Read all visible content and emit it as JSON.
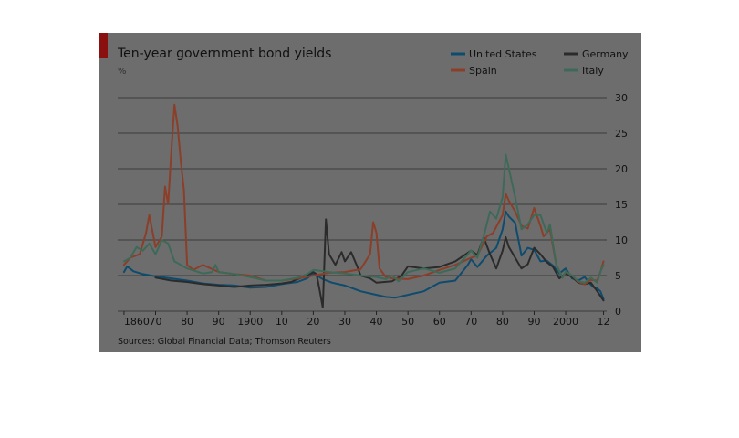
{
  "chart_data": {
    "type": "line",
    "title": "Ten-year government bond yields",
    "subtitle": "%",
    "source": "Sources: Global Financial Data; Thomson Reuters",
    "xlim": [
      1858,
      2013
    ],
    "ylim": [
      0,
      30
    ],
    "y_ticks": [
      0,
      5,
      10,
      15,
      20,
      25,
      30
    ],
    "x_ticks": [
      {
        "year": 1860,
        "label": "1860"
      },
      {
        "year": 1870,
        "label": "70"
      },
      {
        "year": 1880,
        "label": "80"
      },
      {
        "year": 1890,
        "label": "90"
      },
      {
        "year": 1900,
        "label": "1900"
      },
      {
        "year": 1910,
        "label": "10"
      },
      {
        "year": 1920,
        "label": "20"
      },
      {
        "year": 1930,
        "label": "30"
      },
      {
        "year": 1940,
        "label": "40"
      },
      {
        "year": 1950,
        "label": "50"
      },
      {
        "year": 1960,
        "label": "60"
      },
      {
        "year": 1970,
        "label": "70"
      },
      {
        "year": 1980,
        "label": "80"
      },
      {
        "year": 1990,
        "label": "90"
      },
      {
        "year": 2000,
        "label": "2000"
      },
      {
        "year": 2012,
        "label": "12"
      }
    ],
    "grid": "horizontal",
    "legend_position": "top-right",
    "series": [
      {
        "name": "United States",
        "color": "#0d4c6e",
        "points": [
          [
            1860,
            5.5
          ],
          [
            1861,
            6.3
          ],
          [
            1863,
            5.6
          ],
          [
            1866,
            5.2
          ],
          [
            1870,
            4.9
          ],
          [
            1875,
            4.6
          ],
          [
            1880,
            4.3
          ],
          [
            1885,
            3.9
          ],
          [
            1890,
            3.7
          ],
          [
            1895,
            3.6
          ],
          [
            1900,
            3.3
          ],
          [
            1905,
            3.4
          ],
          [
            1910,
            3.8
          ],
          [
            1915,
            4.1
          ],
          [
            1918,
            4.6
          ],
          [
            1920,
            5.3
          ],
          [
            1923,
            4.5
          ],
          [
            1926,
            4.0
          ],
          [
            1930,
            3.6
          ],
          [
            1935,
            2.8
          ],
          [
            1940,
            2.3
          ],
          [
            1943,
            2.0
          ],
          [
            1946,
            1.9
          ],
          [
            1950,
            2.3
          ],
          [
            1955,
            2.8
          ],
          [
            1960,
            4.0
          ],
          [
            1965,
            4.3
          ],
          [
            1969,
            6.5
          ],
          [
            1970,
            7.3
          ],
          [
            1972,
            6.2
          ],
          [
            1975,
            7.8
          ],
          [
            1978,
            8.9
          ],
          [
            1980,
            11.5
          ],
          [
            1981,
            14.0
          ],
          [
            1982,
            13.3
          ],
          [
            1984,
            12.4
          ],
          [
            1986,
            7.8
          ],
          [
            1988,
            8.9
          ],
          [
            1990,
            8.6
          ],
          [
            1992,
            7.0
          ],
          [
            1994,
            7.1
          ],
          [
            1996,
            6.4
          ],
          [
            1998,
            5.3
          ],
          [
            2000,
            6.0
          ],
          [
            2002,
            4.6
          ],
          [
            2004,
            4.3
          ],
          [
            2006,
            4.8
          ],
          [
            2008,
            3.7
          ],
          [
            2009,
            3.3
          ],
          [
            2010,
            3.2
          ],
          [
            2011,
            2.8
          ],
          [
            2012,
            1.7
          ]
        ]
      },
      {
        "name": "Germany",
        "color": "#2b2b2b",
        "points": [
          [
            1870,
            4.7
          ],
          [
            1875,
            4.3
          ],
          [
            1880,
            4.1
          ],
          [
            1885,
            3.8
          ],
          [
            1890,
            3.6
          ],
          [
            1895,
            3.4
          ],
          [
            1900,
            3.6
          ],
          [
            1905,
            3.7
          ],
          [
            1910,
            3.9
          ],
          [
            1913,
            4.1
          ],
          [
            1915,
            4.5
          ],
          [
            1918,
            5.0
          ],
          [
            1920,
            5.5
          ],
          [
            1921,
            5.2
          ],
          [
            1922,
            3.0
          ],
          [
            1923,
            0.5
          ],
          [
            1924,
            12.9
          ],
          [
            1925,
            8.0
          ],
          [
            1927,
            6.5
          ],
          [
            1929,
            8.3
          ],
          [
            1930,
            7.0
          ],
          [
            1932,
            8.3
          ],
          [
            1934,
            6.2
          ],
          [
            1935,
            5.0
          ],
          [
            1938,
            4.6
          ],
          [
            1940,
            4.0
          ],
          [
            1945,
            4.2
          ],
          [
            1948,
            5.0
          ],
          [
            1950,
            6.3
          ],
          [
            1955,
            6.0
          ],
          [
            1960,
            6.2
          ],
          [
            1965,
            7.0
          ],
          [
            1970,
            8.5
          ],
          [
            1972,
            7.9
          ],
          [
            1974,
            10.4
          ],
          [
            1976,
            8.0
          ],
          [
            1978,
            6.0
          ],
          [
            1980,
            8.5
          ],
          [
            1981,
            10.4
          ],
          [
            1982,
            9.0
          ],
          [
            1986,
            6.0
          ],
          [
            1988,
            6.6
          ],
          [
            1990,
            8.9
          ],
          [
            1992,
            8.0
          ],
          [
            1994,
            6.9
          ],
          [
            1996,
            6.2
          ],
          [
            1998,
            4.6
          ],
          [
            2000,
            5.3
          ],
          [
            2002,
            4.8
          ],
          [
            2004,
            4.0
          ],
          [
            2006,
            3.8
          ],
          [
            2008,
            4.0
          ],
          [
            2010,
            2.8
          ],
          [
            2012,
            1.5
          ]
        ]
      },
      {
        "name": "Spain",
        "color": "#8b3e28",
        "points": [
          [
            1860,
            6.5
          ],
          [
            1862,
            7.5
          ],
          [
            1865,
            8.0
          ],
          [
            1867,
            11.0
          ],
          [
            1868,
            13.5
          ],
          [
            1870,
            9.0
          ],
          [
            1872,
            10.5
          ],
          [
            1873,
            17.5
          ],
          [
            1874,
            15.0
          ],
          [
            1875,
            22.5
          ],
          [
            1876,
            29.0
          ],
          [
            1877,
            26.0
          ],
          [
            1878,
            21.0
          ],
          [
            1879,
            17.0
          ],
          [
            1880,
            6.5
          ],
          [
            1882,
            5.8
          ],
          [
            1885,
            6.5
          ],
          [
            1890,
            5.5
          ],
          [
            1895,
            5.2
          ],
          [
            1900,
            5.0
          ],
          [
            1905,
            4.3
          ],
          [
            1910,
            4.3
          ],
          [
            1915,
            4.6
          ],
          [
            1920,
            5.0
          ],
          [
            1925,
            5.4
          ],
          [
            1930,
            5.5
          ],
          [
            1935,
            5.9
          ],
          [
            1938,
            8.0
          ],
          [
            1939,
            12.5
          ],
          [
            1940,
            11.0
          ],
          [
            1941,
            6.0
          ],
          [
            1943,
            4.8
          ],
          [
            1945,
            4.6
          ],
          [
            1950,
            4.5
          ],
          [
            1955,
            5.0
          ],
          [
            1960,
            5.8
          ],
          [
            1965,
            6.5
          ],
          [
            1970,
            7.5
          ],
          [
            1972,
            7.8
          ],
          [
            1975,
            10.5
          ],
          [
            1977,
            11.0
          ],
          [
            1980,
            13.5
          ],
          [
            1981,
            16.5
          ],
          [
            1982,
            15.5
          ],
          [
            1984,
            14.0
          ],
          [
            1986,
            12.0
          ],
          [
            1988,
            11.6
          ],
          [
            1990,
            14.5
          ],
          [
            1992,
            12.0
          ],
          [
            1993,
            10.5
          ],
          [
            1995,
            11.5
          ],
          [
            1997,
            6.5
          ],
          [
            1999,
            4.7
          ],
          [
            2000,
            5.5
          ],
          [
            2002,
            5.0
          ],
          [
            2004,
            4.1
          ],
          [
            2006,
            3.8
          ],
          [
            2008,
            4.4
          ],
          [
            2010,
            4.3
          ],
          [
            2011,
            5.5
          ],
          [
            2012,
            7.0
          ]
        ]
      },
      {
        "name": "Italy",
        "color": "#3d6a58",
        "points": [
          [
            1860,
            7.0
          ],
          [
            1862,
            7.5
          ],
          [
            1864,
            9.0
          ],
          [
            1866,
            8.5
          ],
          [
            1868,
            9.5
          ],
          [
            1870,
            8.0
          ],
          [
            1872,
            10.0
          ],
          [
            1874,
            9.5
          ],
          [
            1876,
            7.0
          ],
          [
            1880,
            6.0
          ],
          [
            1885,
            5.3
          ],
          [
            1888,
            5.5
          ],
          [
            1889,
            6.5
          ],
          [
            1890,
            5.5
          ],
          [
            1895,
            5.2
          ],
          [
            1900,
            4.8
          ],
          [
            1905,
            4.3
          ],
          [
            1910,
            4.3
          ],
          [
            1915,
            4.7
          ],
          [
            1918,
            5.2
          ],
          [
            1920,
            5.8
          ],
          [
            1925,
            5.5
          ],
          [
            1930,
            5.3
          ],
          [
            1935,
            5.0
          ],
          [
            1940,
            4.8
          ],
          [
            1943,
            4.5
          ],
          [
            1945,
            5.0
          ],
          [
            1947,
            4.2
          ],
          [
            1950,
            5.5
          ],
          [
            1955,
            6.0
          ],
          [
            1960,
            5.4
          ],
          [
            1965,
            6.0
          ],
          [
            1970,
            8.5
          ],
          [
            1972,
            7.5
          ],
          [
            1974,
            10.5
          ],
          [
            1976,
            14.0
          ],
          [
            1978,
            13.0
          ],
          [
            1980,
            16.0
          ],
          [
            1981,
            22.0
          ],
          [
            1982,
            20.0
          ],
          [
            1984,
            16.0
          ],
          [
            1986,
            11.5
          ],
          [
            1988,
            12.2
          ],
          [
            1990,
            13.5
          ],
          [
            1992,
            13.5
          ],
          [
            1994,
            11.0
          ],
          [
            1995,
            12.2
          ],
          [
            1997,
            6.5
          ],
          [
            1999,
            4.7
          ],
          [
            2000,
            5.6
          ],
          [
            2002,
            5.0
          ],
          [
            2004,
            4.2
          ],
          [
            2006,
            4.0
          ],
          [
            2008,
            4.7
          ],
          [
            2010,
            4.0
          ],
          [
            2011,
            5.5
          ],
          [
            2012,
            6.5
          ]
        ]
      }
    ]
  }
}
